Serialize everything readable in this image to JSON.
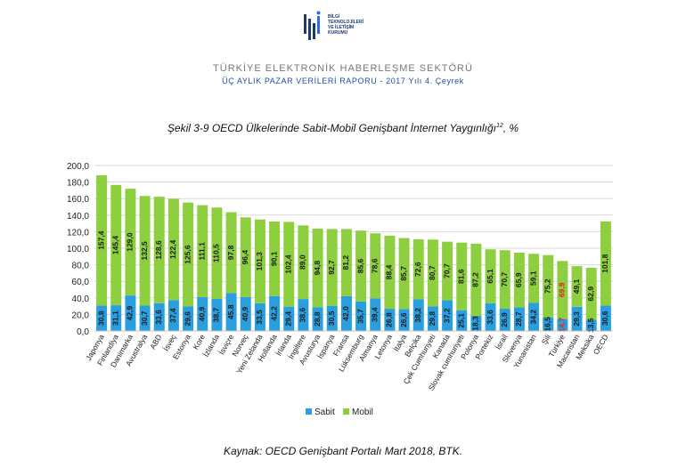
{
  "logo": {
    "lines": [
      "BİLGİ",
      "TEKNOLOJİLERİ",
      "VE İLETİŞİM",
      "KURUMU"
    ]
  },
  "header": {
    "title": "TÜRKİYE ELEKTRONİK HABERLEŞME SEKTÖRÜ",
    "subtitle": "ÜÇ AYLIK PAZAR VERİLERİ RAPORU - 2017 Yılı 4. Çeyrek"
  },
  "figure": {
    "title_main": "Şekil 3-9 OECD Ülkelerinde Sabit-Mobil Genişbant İnternet Yaygınlığı",
    "title_sup": "12",
    "title_tail": ", %"
  },
  "source": "Kaynak: OECD Genişbant Portalı Mart 2018, BTK.",
  "colors": {
    "sabit": "#2a9fe0",
    "mobil": "#8dcf3e",
    "highlight_label": "#e0251b",
    "grid": "#d9d9d9"
  },
  "chart_data": {
    "type": "bar",
    "stacked": true,
    "ylim": [
      0,
      200
    ],
    "yticks": [
      "0,0",
      "20,0",
      "40,0",
      "60,0",
      "80,0",
      "100,0",
      "120,0",
      "140,0",
      "160,0",
      "180,0",
      "200,0"
    ],
    "grid": true,
    "legend_position": "bottom",
    "categories": [
      "Japonya",
      "Finlandiya",
      "Danimarka",
      "Avustralya",
      "ABD",
      "İsveç",
      "Estonya",
      "Kore",
      "İzlanda",
      "İsviçre",
      "Norveç",
      "Yeni Zelanda",
      "Hollanda",
      "İrlanda",
      "İngiltere",
      "Avusturya",
      "İspanya",
      "Fransa",
      "Lüksemburg",
      "Almanya",
      "Letonya",
      "İtalya",
      "Belçika",
      "Çek Cumhuriyeti",
      "Kanada",
      "Slovak cumhuriyeti",
      "Polonya",
      "Portekiz",
      "İsrail",
      "Slovenya",
      "Yunanistan",
      "Şili",
      "Türkiye",
      "Macaristan",
      "Meksika",
      "OECD"
    ],
    "series": [
      {
        "name": "Sabit",
        "values": [
          30.8,
          31.1,
          42.9,
          30.7,
          33.6,
          37.4,
          29.6,
          40.9,
          38.7,
          45.8,
          40.9,
          33.5,
          42.2,
          29.4,
          38.6,
          28.8,
          30.5,
          42.0,
          35.7,
          39.4,
          26.8,
          26.6,
          38.2,
          29.8,
          37.2,
          25.1,
          18.3,
          33.6,
          26.9,
          28.7,
          34.2,
          16.5,
          14.7,
          29.3,
          13.5,
          30.6
        ],
        "labels": [
          "30,8",
          "31,1",
          "42,9",
          "30,7",
          "33,6",
          "37,4",
          "29,6",
          "40,9",
          "38,7",
          "45,8",
          "40,9",
          "33,5",
          "42,2",
          "29,4",
          "38,6",
          "28,8",
          "30,5",
          "42,0",
          "35,7",
          "39,4",
          "26,8",
          "26,6",
          "38,2",
          "29,8",
          "37,2",
          "25,1",
          "18,3",
          "33,6",
          "26,9",
          "28,7",
          "34,2",
          "16,5",
          "14,7",
          "29,3",
          "13,5",
          "30,6"
        ]
      },
      {
        "name": "Mobil",
        "values": [
          157.4,
          145.4,
          129.0,
          132.5,
          128.6,
          122.4,
          125.6,
          111.1,
          110.5,
          97.8,
          96.4,
          101.3,
          90.1,
          102.4,
          89.0,
          94.8,
          92.7,
          81.2,
          85.6,
          78.6,
          88.4,
          85.7,
          72.6,
          80.7,
          70.7,
          81.6,
          87.2,
          65.1,
          70.7,
          65.9,
          59.1,
          75.2,
          69.9,
          49.1,
          62.9,
          101.8
        ],
        "labels": [
          "157,4",
          "145,4",
          "129,0",
          "132,5",
          "128,6",
          "122,4",
          "125,6",
          "111,1",
          "110,5",
          "97,8",
          "96,4",
          "101,3",
          "90,1",
          "102,4",
          "89,0",
          "94,8",
          "92,7",
          "81,2",
          "85,6",
          "78,6",
          "88,4",
          "85,7",
          "72,6",
          "80,7",
          "70,7",
          "81,6",
          "87,2",
          "65,1",
          "70,7",
          "65,9",
          "59,1",
          "75,2",
          "69,9",
          "49,1",
          "62,9",
          "101,8"
        ]
      }
    ],
    "highlight_category": "Türkiye"
  }
}
